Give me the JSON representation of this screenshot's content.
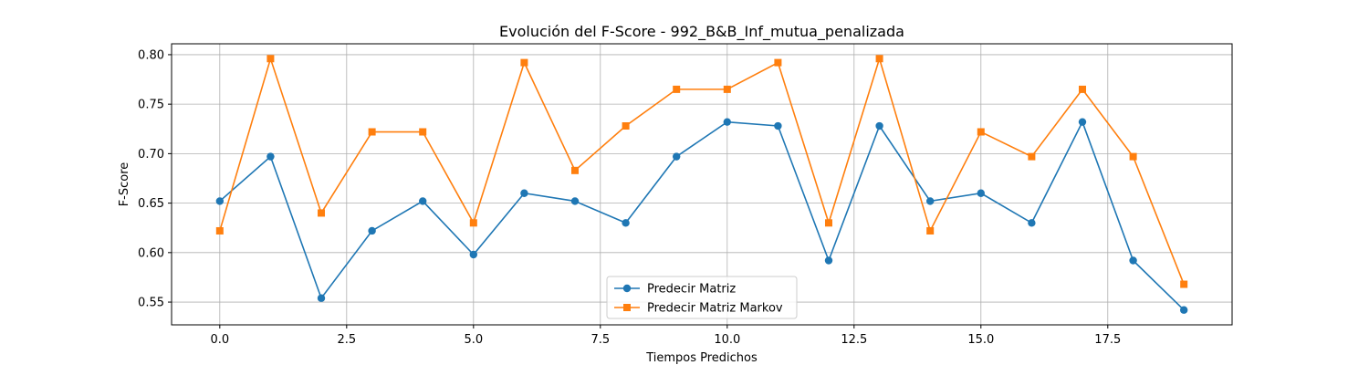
{
  "chart_data": {
    "type": "line",
    "title": "Evolución del F-Score - 992_B&B_Inf_mutua_penalizada",
    "xlabel": "Tiempos Predichos",
    "ylabel": "F-Score",
    "xlim": [
      -0.95,
      19.95
    ],
    "ylim": [
      0.527,
      0.811
    ],
    "xticks": [
      0.0,
      2.5,
      5.0,
      7.5,
      10.0,
      12.5,
      15.0,
      17.5
    ],
    "xtick_labels": [
      "0.0",
      "2.5",
      "5.0",
      "7.5",
      "10.0",
      "12.5",
      "15.0",
      "17.5"
    ],
    "yticks": [
      0.55,
      0.6,
      0.65,
      0.7,
      0.75,
      0.8
    ],
    "ytick_labels": [
      "0.55",
      "0.60",
      "0.65",
      "0.70",
      "0.75",
      "0.80"
    ],
    "grid": true,
    "legend_position": "lower-center",
    "x": [
      0,
      1,
      2,
      3,
      4,
      5,
      6,
      7,
      8,
      9,
      10,
      11,
      12,
      13,
      14,
      15,
      16,
      17,
      18,
      19
    ],
    "series": [
      {
        "name": "Predecir Matriz",
        "color": "#1f77b4",
        "marker": "circle",
        "values": [
          0.652,
          0.697,
          0.554,
          0.622,
          0.652,
          0.598,
          0.66,
          0.652,
          0.63,
          0.697,
          0.732,
          0.728,
          0.592,
          0.728,
          0.652,
          0.66,
          0.63,
          0.732,
          0.592,
          0.542
        ]
      },
      {
        "name": "Predecir Matriz Markov",
        "color": "#ff7f0e",
        "marker": "square",
        "values": [
          0.622,
          0.796,
          0.64,
          0.722,
          0.722,
          0.63,
          0.792,
          0.683,
          0.728,
          0.765,
          0.765,
          0.792,
          0.63,
          0.796,
          0.622,
          0.722,
          0.697,
          0.765,
          0.697,
          0.568
        ]
      }
    ]
  }
}
